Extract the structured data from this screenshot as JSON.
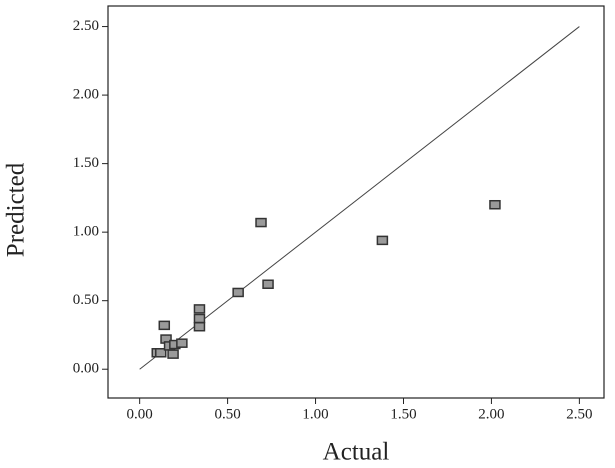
{
  "chart_data": {
    "type": "scatter",
    "x_label": "Actual",
    "y_label": "Predicted",
    "xlim": [
      -0.18,
      2.64
    ],
    "ylim": [
      -0.21,
      2.65
    ],
    "xticks": [
      {
        "value": 0,
        "label": "0.00"
      },
      {
        "value": 0.5,
        "label": "0.50"
      },
      {
        "value": 1,
        "label": "1.00"
      },
      {
        "value": 1.5,
        "label": "1.50"
      },
      {
        "value": 2,
        "label": "2.00"
      },
      {
        "value": 2.5,
        "label": "2.50"
      }
    ],
    "yticks": [
      {
        "value": 0,
        "label": "0.00"
      },
      {
        "value": 0.5,
        "label": "0.50"
      },
      {
        "value": 1,
        "label": "1.00"
      },
      {
        "value": 1.5,
        "label": "1.50"
      },
      {
        "value": 2,
        "label": "2.00"
      },
      {
        "value": 2.5,
        "label": "2.50"
      }
    ],
    "x": [
      0.1,
      0.12,
      0.14,
      0.15,
      0.17,
      0.19,
      0.2,
      0.24,
      0.34,
      0.34,
      0.34,
      0.56,
      0.69,
      0.73,
      1.38,
      2.02
    ],
    "values": [
      0.12,
      0.12,
      0.32,
      0.22,
      0.17,
      0.11,
      0.18,
      0.19,
      0.44,
      0.37,
      0.31,
      0.56,
      1.07,
      0.62,
      0.94,
      1.2
    ],
    "color": "#9a9a9a",
    "reference_line": {
      "x": [
        0,
        2.5
      ],
      "y": [
        0,
        2.5
      ]
    }
  }
}
